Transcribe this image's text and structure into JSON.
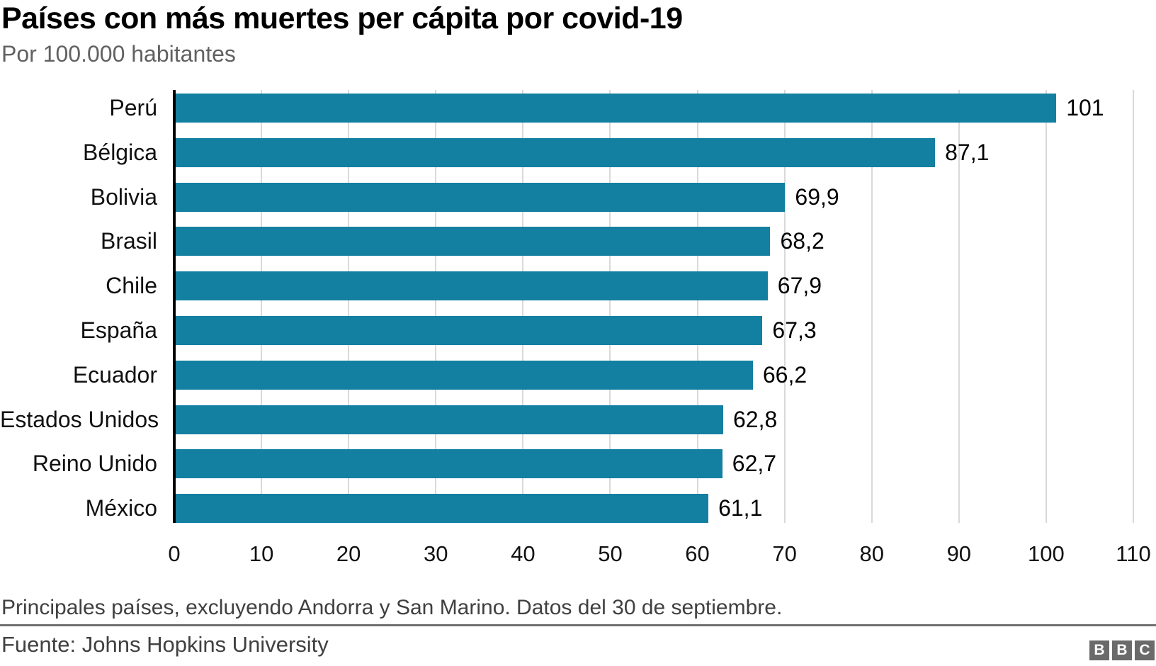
{
  "title": "Países con más muertes per cápita por covid-19",
  "subtitle": "Por 100.000 habitantes",
  "chart_data": {
    "type": "bar",
    "orientation": "horizontal",
    "title": "Países con más muertes per cápita por covid-19",
    "subtitle": "Por 100.000 habitantes",
    "categories": [
      "Perú",
      "Bélgica",
      "Bolivia",
      "Brasil",
      "Chile",
      "España",
      "Ecuador",
      "Estados Unidos",
      "Reino Unido",
      "México"
    ],
    "values": [
      101,
      87.1,
      69.9,
      68.2,
      67.9,
      67.3,
      66.2,
      62.8,
      62.7,
      61.1
    ],
    "value_labels": [
      "101",
      "87,1",
      "69,9",
      "68,2",
      "67,9",
      "67,3",
      "66,2",
      "62,8",
      "62,7",
      "61,1"
    ],
    "xlabel": "",
    "ylabel": "",
    "xlim": [
      0,
      110
    ],
    "x_ticks": [
      0,
      10,
      20,
      30,
      40,
      50,
      60,
      70,
      80,
      90,
      100,
      110
    ],
    "grid": "vertical-only",
    "legend": "none",
    "bar_color": "#1380A1",
    "gridline_color": "#d9d9d9",
    "axis_color": "#000000"
  },
  "footer": {
    "note": "Principales países, excluyendo Andorra y San Marino. Datos del 30 de septiembre.",
    "source": "Fuente: Johns Hopkins University",
    "logo_letters": [
      "B",
      "B",
      "C"
    ]
  }
}
